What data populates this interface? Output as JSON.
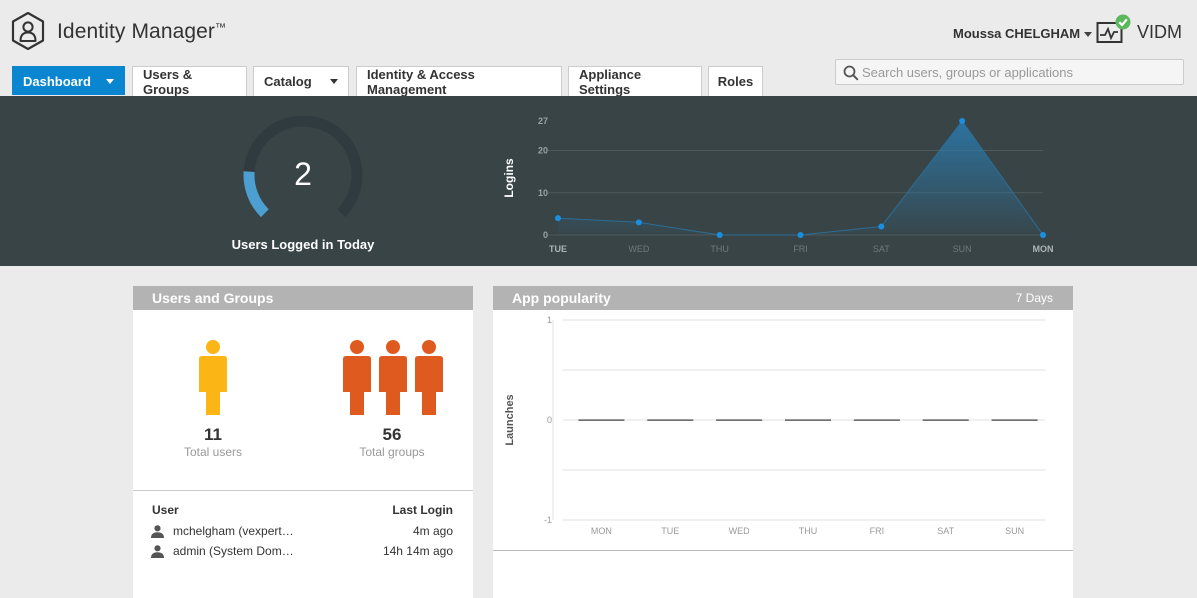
{
  "header": {
    "app_title": "Identity Manager",
    "trademark": "™",
    "user_name": "Moussa CHELGHAM",
    "tenant_label": "VIDM"
  },
  "tabs": [
    {
      "label": "Dashboard",
      "active": true,
      "has_dropdown": true
    },
    {
      "label": "Users & Groups",
      "active": false,
      "has_dropdown": false
    },
    {
      "label": "Catalog",
      "active": false,
      "has_dropdown": true
    },
    {
      "label": "Identity & Access Management",
      "active": false,
      "has_dropdown": false
    },
    {
      "label": "Appliance Settings",
      "active": false,
      "has_dropdown": false
    },
    {
      "label": "Roles",
      "active": false,
      "has_dropdown": false
    }
  ],
  "search": {
    "placeholder": "Search users, groups or applications",
    "value": ""
  },
  "summary": {
    "users_logged_in_today": "2",
    "users_logged_in_label": "Users Logged in Today",
    "gauge_fraction": 0.18
  },
  "chart_data": [
    {
      "type": "area",
      "ylabel": "Logins",
      "x": [
        "TUE",
        "WED",
        "THU",
        "FRI",
        "SAT",
        "SUN",
        "MON"
      ],
      "bold_x": [
        "TUE",
        "MON"
      ],
      "yticks": [
        0,
        10,
        20,
        27
      ],
      "ylim": [
        0,
        27
      ],
      "series": [
        {
          "values": [
            4,
            3,
            0,
            0,
            2,
            27,
            0
          ]
        }
      ],
      "grid": true
    },
    {
      "type": "bar",
      "title": "App popularity",
      "period": "7 Days",
      "ylabel": "Launches",
      "categories": [
        "MON",
        "TUE",
        "WED",
        "THU",
        "FRI",
        "SAT",
        "SUN"
      ],
      "yticks": [
        1,
        0,
        -1
      ],
      "ylim": [
        -1,
        1
      ],
      "values": [
        0,
        0,
        0,
        0,
        0,
        0,
        0
      ],
      "grid": true
    }
  ],
  "users_groups": {
    "title": "Users and Groups",
    "total_users": "11",
    "total_users_label": "Total users",
    "total_groups": "56",
    "total_groups_label": "Total groups",
    "col_user": "User",
    "col_last_login": "Last Login",
    "rows": [
      {
        "user": "mchelgham (vexpert…",
        "last_login": "4m ago"
      },
      {
        "user": "admin (System Dom…",
        "last_login": "14h 14m ago"
      }
    ]
  },
  "colors": {
    "accent": "#0a86d0",
    "dark_band": "#384446",
    "users_icon": "#fbb515",
    "groups_icon": "#de5a1f",
    "status_ok": "#5cb85c",
    "chart_point": "#1a8fe0"
  }
}
